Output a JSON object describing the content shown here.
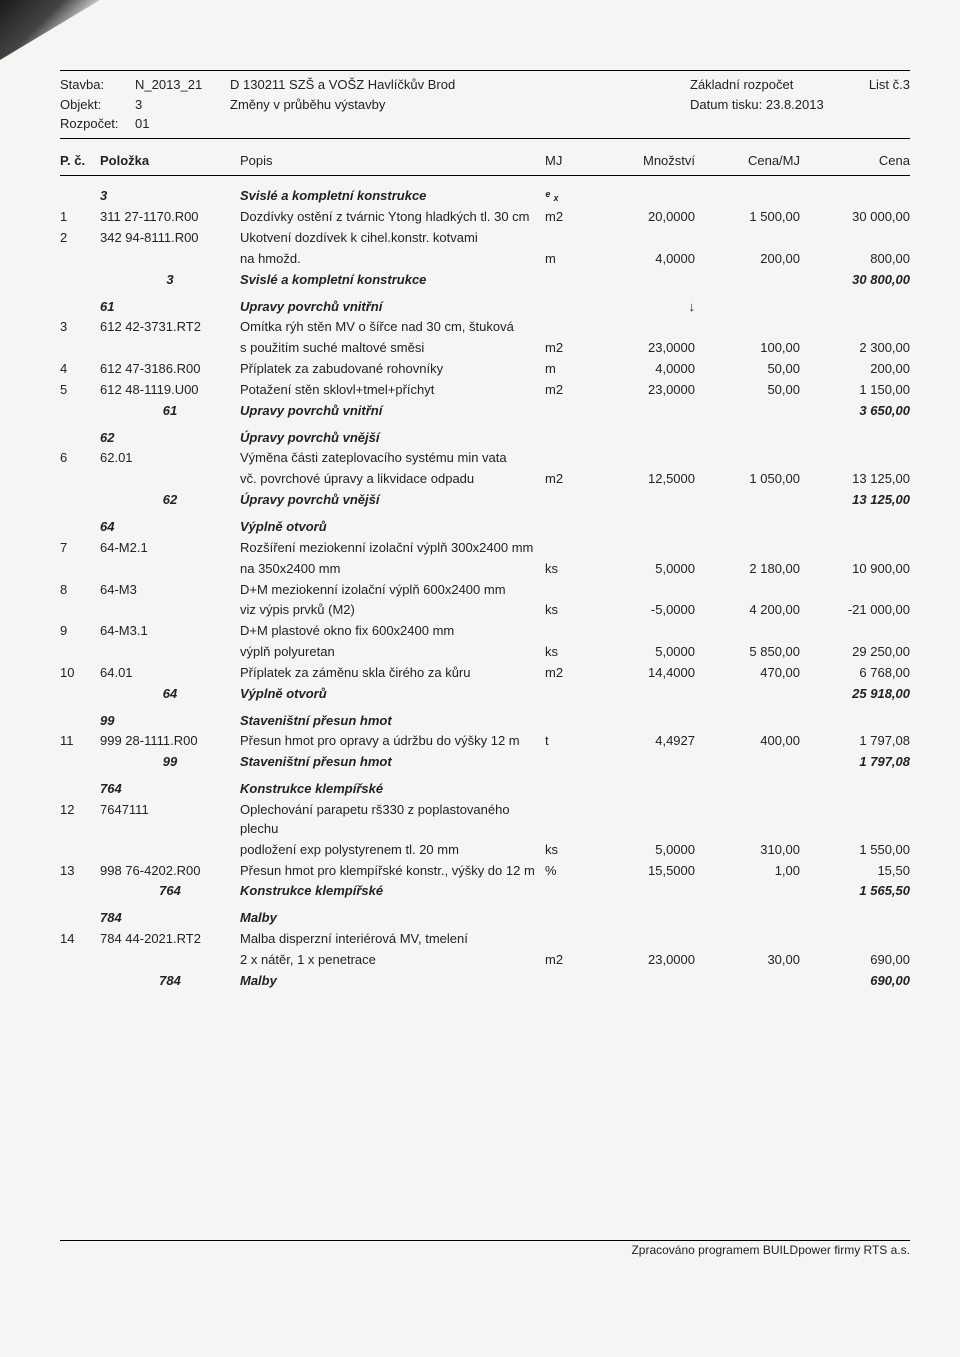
{
  "header": {
    "stavba_lbl": "Stavba:",
    "stavba": "N_2013_21",
    "objekt_lbl": "Objekt:",
    "objekt": "3",
    "rozpocet_lbl": "Rozpočet:",
    "rozpocet": "01",
    "title1": "D 130211 SZŠ a VOŠZ Havlíčkův Brod",
    "title2": "Změny v průběhu výstavby",
    "zakl": "Základní rozpočet",
    "datum_lbl": "Datum tisku:",
    "datum": "23.8.2013",
    "list": "List č.3"
  },
  "cols": {
    "pc": "P. č.",
    "polozka": "Položka",
    "popis": "Popis",
    "mj": "MJ",
    "mnozstvi": "Množství",
    "cenamj": "Cena/MJ",
    "cena": "Cena"
  },
  "sections": [
    {
      "code": "3",
      "title": "Svislé a kompletní konstrukce",
      "total": "30 800,00",
      "head_mark": "ᵉ ₓ",
      "rows": [
        {
          "pc": "1",
          "pol": "311 27-1170.R00",
          "popis": "Dozdívky ostění z tvárnic Ytong hladkých tl. 30 cm",
          "mj": "m2",
          "mn": "20,0000",
          "cmj": "1 500,00",
          "cena": "30 000,00"
        },
        {
          "pc": "2",
          "pol": "342 94-8111.R00",
          "popis": "Ukotvení dozdívek k cihel.konstr. kotvami"
        },
        {
          "popis": "na hmožd.",
          "mj": "m",
          "mn": "4,0000",
          "cmj": "200,00",
          "cena": "800,00"
        }
      ]
    },
    {
      "code": "61",
      "title": "Upravy povrchů vnitřní",
      "total": "3 650,00",
      "head_extra_mn": "↓",
      "rows": [
        {
          "pc": "3",
          "pol": "612 42-3731.RT2",
          "popis": "Omítka rýh stěn MV o šířce nad 30 cm, štuková"
        },
        {
          "popis": "s použitím suché maltové směsi",
          "mj": "m2",
          "mn": "23,0000",
          "cmj": "100,00",
          "cena": "2 300,00"
        },
        {
          "pc": "4",
          "pol": "612 47-3186.R00",
          "popis": "Příplatek za zabudované rohovníky",
          "mj": "m",
          "mn": "4,0000",
          "cmj": "50,00",
          "cena": "200,00"
        },
        {
          "pc": "5",
          "pol": "612 48-1119.U00",
          "popis": "Potažení stěn sklovl+tmel+příchyt",
          "mj": "m2",
          "mn": "23,0000",
          "cmj": "50,00",
          "cena": "1 150,00"
        }
      ]
    },
    {
      "code": "62",
      "title": "Úpravy povrchů vnější",
      "total": "13 125,00",
      "rows": [
        {
          "pc": "6",
          "pol": "62.01",
          "popis": "Výměna části zateplovacího systému min vata"
        },
        {
          "popis": "vč. povrchové úpravy a likvidace odpadu",
          "mj": "m2",
          "mn": "12,5000",
          "cmj": "1 050,00",
          "cena": "13 125,00"
        }
      ]
    },
    {
      "code": "64",
      "title": "Výplně otvorů",
      "total": "25 918,00",
      "rows": [
        {
          "pc": "7",
          "pol": "64-M2.1",
          "popis": "Rozšíření meziokenní izolační výplň  300x2400 mm"
        },
        {
          "popis": "na 350x2400 mm",
          "mj": "ks",
          "mn": "5,0000",
          "cmj": "2 180,00",
          "cena": "10 900,00"
        },
        {
          "pc": "8",
          "pol": "64-M3",
          "popis": "D+M meziokenní izolační výplň  600x2400 mm"
        },
        {
          "popis": "viz výpis prvků  (M2)",
          "mj": "ks",
          "mn": "-5,0000",
          "cmj": "4 200,00",
          "cena": "-21 000,00"
        },
        {
          "pc": "9",
          "pol": "64-M3.1",
          "popis": "D+M plastové okno fix 600x2400 mm"
        },
        {
          "popis": "výplň polyuretan",
          "mj": "ks",
          "mn": "5,0000",
          "cmj": "5 850,00",
          "cena": "29 250,00"
        },
        {
          "pc": "10",
          "pol": "64.01",
          "popis": "Příplatek za záměnu skla čirého za kůru",
          "mj": "m2",
          "mn": "14,4000",
          "cmj": "470,00",
          "cena": "6 768,00"
        }
      ]
    },
    {
      "code": "99",
      "title": "Staveništní přesun hmot",
      "total": "1 797,08",
      "rows": [
        {
          "pc": "11",
          "pol": "999 28-1111.R00",
          "popis": "Přesun hmot pro opravy a údržbu do výšky 12 m",
          "mj": "t",
          "mn": "4,4927",
          "cmj": "400,00",
          "cena": "1 797,08"
        }
      ]
    },
    {
      "code": "764",
      "title": "Konstrukce klempířské",
      "total": "1 565,50",
      "rows": [
        {
          "pc": "12",
          "pol": "7647111",
          "popis": "Oplechování parapetu rš330 z poplastovaného plechu"
        },
        {
          "popis": "podložení exp polystyrenem tl. 20 mm",
          "mj": "ks",
          "mn": "5,0000",
          "cmj": "310,00",
          "cena": "1 550,00"
        },
        {
          "pc": "13",
          "pol": "998 76-4202.R00",
          "popis": "Přesun hmot pro klempířské konstr., výšky do 12 m",
          "mj": "%",
          "mn": "15,5000",
          "cmj": "1,00",
          "cena": "15,50"
        }
      ]
    },
    {
      "code": "784",
      "title": "Malby",
      "total": "690,00",
      "rows": [
        {
          "pc": "14",
          "pol": "784 44-2021.RT2",
          "popis": "Malba disperzní interiérová MV, tmelení"
        },
        {
          "popis": "2 x nátěr, 1 x penetrace",
          "mj": "m2",
          "mn": "23,0000",
          "cmj": "30,00",
          "cena": "690,00"
        }
      ]
    }
  ],
  "footer": "Zpracováno programem BUILDpower firmy RTS a.s."
}
